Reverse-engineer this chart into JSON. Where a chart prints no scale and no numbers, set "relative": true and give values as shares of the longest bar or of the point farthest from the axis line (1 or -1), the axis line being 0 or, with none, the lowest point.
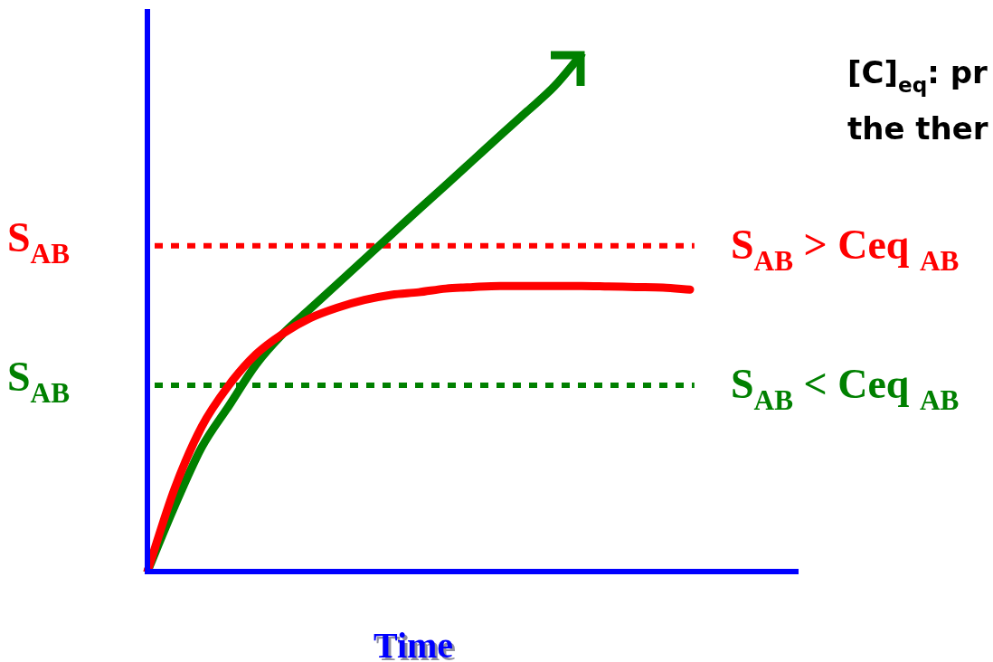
{
  "chart_data": {
    "type": "line",
    "relative": true,
    "xlabel": "Time",
    "legend": false,
    "categories": [
      null,
      null,
      null,
      null,
      null,
      null,
      null,
      null,
      null,
      null,
      null,
      null,
      null,
      null,
      null,
      null,
      null,
      null,
      null,
      null,
      null,
      null,
      null,
      null,
      null
    ],
    "series": [
      {
        "color": "#008000",
        "values": [
          0,
          0.126,
          0.24,
          0.32,
          0.4,
          0.46,
          0.508,
          0.556,
          0.604,
          0.652,
          0.7,
          0.747,
          0.795,
          0.843,
          0.89,
          0.938,
          1,
          null,
          null,
          null,
          null,
          null,
          null,
          null,
          null
        ]
      },
      {
        "color": "#ff0000",
        "values": [
          0,
          0.16,
          0.28,
          0.36,
          0.42,
          0.46,
          0.49,
          0.51,
          0.525,
          0.535,
          0.54,
          0.547,
          0.55,
          0.552,
          0.552,
          0.552,
          0.552,
          0.551,
          0.55,
          0.549,
          0.545,
          null,
          null,
          null,
          null
        ]
      }
    ],
    "ref_lines": [
      {
        "axis": "y",
        "value": 0.63,
        "label": "S$_{AB}$",
        "color": "#ff0000",
        "line_style": "dotted"
      },
      {
        "axis": "y",
        "value": 0.36,
        "label": "S$_{AB}$",
        "color": "#008000",
        "line_style": "dotted"
      }
    ],
    "annotations": [
      "S$_{AB}$ > Ceq $_{AB}$",
      "S$_{AB}$ < Ceq $_{AB}$",
      "[C]$_{eq}$: pr",
      "the ther"
    ]
  }
}
